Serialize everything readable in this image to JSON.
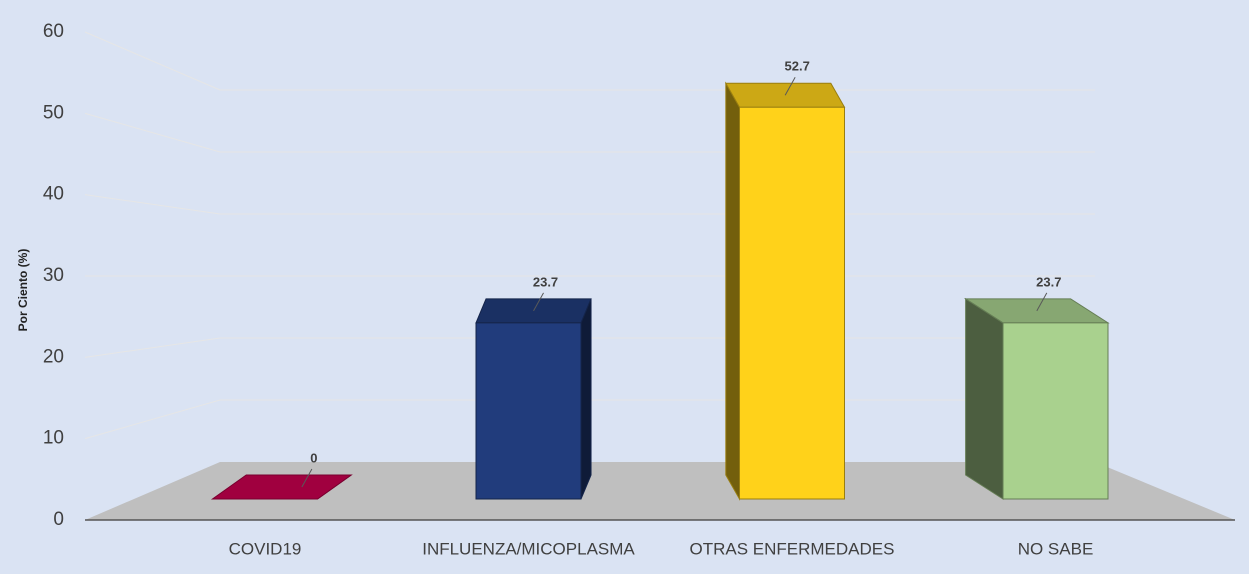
{
  "chart_data": {
    "type": "bar3d",
    "y_axis_label": "Por Ciento (%)",
    "categories": [
      "COVID19",
      "INFLUENZA/MICOPLASMA",
      "OTRAS ENFERMEDADES",
      "NO SABE"
    ],
    "series": [
      {
        "name": null,
        "values": [
          0,
          23.7,
          52.7,
          23.7
        ]
      }
    ],
    "colors": [
      "#c8004f",
      "#213c7c",
      "#ffd21a",
      "#a9d18e"
    ],
    "ylim": [
      0,
      60
    ],
    "yticks": [
      0,
      10,
      20,
      30,
      40,
      50,
      60
    ],
    "grid": true
  }
}
